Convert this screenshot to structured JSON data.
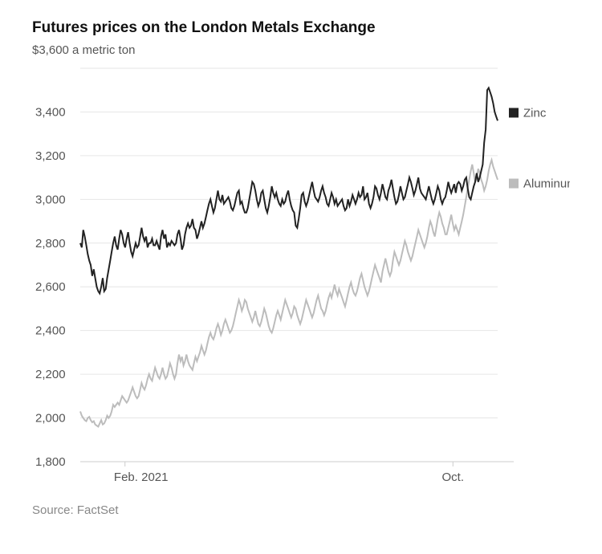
{
  "chart": {
    "type": "line",
    "title": "Futures prices on the London Metals Exchange",
    "subtitle": "$3,600 a metric ton",
    "source": "Source: FactSet",
    "background_color": "#ffffff",
    "grid_color": "#e6e6e6",
    "axis_color": "#cccccc",
    "label_color": "#555555",
    "title_color": "#111111",
    "title_fontsize": 19,
    "label_fontsize": 15,
    "y": {
      "min": 1800,
      "max": 3600,
      "ticks": [
        1800,
        2000,
        2200,
        2400,
        2600,
        2800,
        3000,
        3200,
        3400
      ],
      "tick_labels": [
        "1,800",
        "2,000",
        "2,200",
        "2,400",
        "2,600",
        "2,800",
        "3,000",
        "3,200",
        "3,400"
      ]
    },
    "x": {
      "min": 0,
      "max": 280,
      "ticks": [
        30,
        250
      ],
      "tick_labels": [
        "Feb. 2021",
        "Oct."
      ]
    },
    "legend": {
      "items": [
        {
          "label": "Zinc",
          "color": "#222222"
        },
        {
          "label": "Aluminum",
          "color": "#bcbcbc"
        }
      ]
    },
    "series": [
      {
        "name": "Zinc",
        "color": "#222222",
        "width": 2,
        "values": [
          2800,
          2780,
          2860,
          2830,
          2790,
          2750,
          2720,
          2700,
          2650,
          2680,
          2640,
          2600,
          2580,
          2570,
          2600,
          2640,
          2580,
          2590,
          2640,
          2680,
          2720,
          2760,
          2800,
          2830,
          2790,
          2770,
          2820,
          2860,
          2840,
          2800,
          2780,
          2820,
          2850,
          2800,
          2760,
          2740,
          2770,
          2800,
          2780,
          2790,
          2830,
          2870,
          2830,
          2810,
          2830,
          2780,
          2800,
          2800,
          2820,
          2790,
          2790,
          2810,
          2790,
          2770,
          2830,
          2860,
          2820,
          2840,
          2780,
          2800,
          2790,
          2810,
          2800,
          2790,
          2800,
          2840,
          2860,
          2820,
          2770,
          2790,
          2840,
          2870,
          2890,
          2870,
          2880,
          2910,
          2870,
          2860,
          2820,
          2840,
          2870,
          2900,
          2870,
          2890,
          2920,
          2950,
          2980,
          3000,
          2970,
          2940,
          2960,
          3000,
          3040,
          3000,
          2990,
          3020,
          2980,
          2990,
          3000,
          3010,
          2990,
          2960,
          2950,
          2970,
          3000,
          3030,
          3040,
          2980,
          2990,
          2960,
          2940,
          2940,
          2960,
          3000,
          3040,
          3080,
          3070,
          3040,
          3000,
          2970,
          2990,
          3030,
          3040,
          3000,
          2960,
          2940,
          2970,
          3010,
          3060,
          3030,
          3010,
          3030,
          3000,
          2980,
          2970,
          3000,
          2980,
          2990,
          3020,
          3040,
          3000,
          2970,
          2950,
          2940,
          2880,
          2870,
          2910,
          2960,
          3020,
          3030,
          2990,
          2970,
          2990,
          3020,
          3050,
          3080,
          3040,
          3010,
          3000,
          2990,
          3010,
          3040,
          3060,
          3030,
          3010,
          2980,
          2970,
          3000,
          3030,
          3010,
          2980,
          3000,
          2970,
          2980,
          2990,
          3000,
          2970,
          2950,
          2960,
          3000,
          2970,
          2990,
          3020,
          3000,
          2980,
          3000,
          3030,
          3010,
          3020,
          3060,
          3000,
          3010,
          3030,
          2980,
          2960,
          2980,
          3010,
          3060,
          3050,
          3020,
          3000,
          3030,
          3070,
          3040,
          3010,
          3000,
          3040,
          3060,
          3090,
          3050,
          3010,
          2980,
          2990,
          3020,
          3060,
          3030,
          3000,
          3010,
          3040,
          3070,
          3100,
          3080,
          3050,
          3020,
          3040,
          3070,
          3100,
          3050,
          3030,
          3020,
          3010,
          3000,
          3030,
          3060,
          3030,
          3000,
          2980,
          3000,
          3030,
          3060,
          3040,
          3000,
          2980,
          3000,
          3010,
          3040,
          3080,
          3050,
          3030,
          3050,
          3070,
          3030,
          3070,
          3080,
          3070,
          3040,
          3060,
          3090,
          3100,
          3050,
          3010,
          3000,
          3030,
          3060,
          3080,
          3120,
          3080,
          3100,
          3130,
          3160,
          3260,
          3320,
          3500,
          3510,
          3490,
          3470,
          3440,
          3400,
          3380,
          3360
        ]
      },
      {
        "name": "Aluminum",
        "color": "#bcbcbc",
        "width": 2,
        "values": [
          2030,
          2010,
          2000,
          1990,
          1985,
          2000,
          2005,
          1990,
          1980,
          1985,
          1970,
          1965,
          1960,
          1975,
          1990,
          1970,
          1975,
          1990,
          2010,
          2000,
          2010,
          2030,
          2060,
          2050,
          2060,
          2070,
          2060,
          2080,
          2100,
          2090,
          2080,
          2070,
          2080,
          2100,
          2120,
          2140,
          2120,
          2100,
          2090,
          2100,
          2130,
          2160,
          2140,
          2130,
          2150,
          2180,
          2200,
          2180,
          2170,
          2200,
          2230,
          2210,
          2190,
          2180,
          2200,
          2230,
          2200,
          2180,
          2190,
          2220,
          2250,
          2230,
          2200,
          2180,
          2200,
          2250,
          2290,
          2260,
          2280,
          2240,
          2260,
          2290,
          2260,
          2240,
          2230,
          2220,
          2250,
          2280,
          2260,
          2280,
          2300,
          2330,
          2310,
          2290,
          2310,
          2340,
          2370,
          2390,
          2370,
          2360,
          2380,
          2410,
          2430,
          2410,
          2380,
          2400,
          2430,
          2450,
          2430,
          2410,
          2390,
          2400,
          2420,
          2450,
          2480,
          2510,
          2540,
          2520,
          2490,
          2510,
          2540,
          2530,
          2500,
          2480,
          2460,
          2440,
          2460,
          2490,
          2460,
          2430,
          2420,
          2440,
          2470,
          2500,
          2480,
          2450,
          2420,
          2400,
          2390,
          2410,
          2440,
          2470,
          2490,
          2470,
          2450,
          2480,
          2510,
          2540,
          2520,
          2500,
          2480,
          2460,
          2480,
          2510,
          2500,
          2470,
          2450,
          2430,
          2450,
          2480,
          2510,
          2540,
          2520,
          2500,
          2480,
          2460,
          2480,
          2510,
          2540,
          2560,
          2530,
          2500,
          2490,
          2470,
          2490,
          2520,
          2550,
          2570,
          2550,
          2580,
          2610,
          2580,
          2560,
          2590,
          2570,
          2550,
          2530,
          2510,
          2540,
          2570,
          2600,
          2620,
          2590,
          2570,
          2560,
          2580,
          2610,
          2640,
          2660,
          2630,
          2600,
          2580,
          2560,
          2580,
          2610,
          2640,
          2670,
          2700,
          2680,
          2660,
          2640,
          2620,
          2670,
          2700,
          2730,
          2700,
          2670,
          2650,
          2670,
          2720,
          2760,
          2740,
          2720,
          2700,
          2720,
          2750,
          2780,
          2810,
          2790,
          2760,
          2740,
          2720,
          2740,
          2770,
          2800,
          2830,
          2860,
          2840,
          2820,
          2800,
          2780,
          2800,
          2830,
          2870,
          2900,
          2880,
          2850,
          2830,
          2870,
          2910,
          2940,
          2920,
          2890,
          2870,
          2840,
          2840,
          2870,
          2900,
          2930,
          2890,
          2860,
          2880,
          2860,
          2840,
          2870,
          2900,
          2930,
          2970,
          3010,
          3050,
          3090,
          3130,
          3160,
          3120,
          3080,
          3100,
          3140,
          3120,
          3090,
          3070,
          3040,
          3060,
          3090,
          3130,
          3160,
          3180,
          3150,
          3130,
          3110,
          3090
        ]
      }
    ]
  }
}
